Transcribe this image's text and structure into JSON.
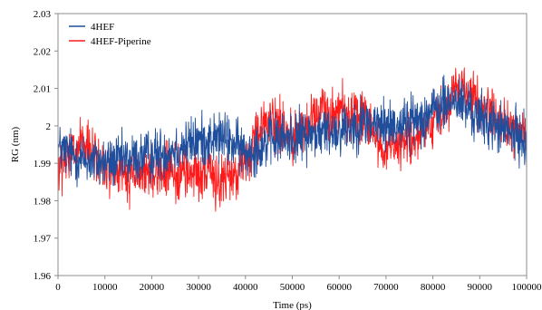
{
  "chart_data": {
    "type": "line",
    "xlabel": "Time (ps)",
    "ylabel": "RG (nm)",
    "xlim": [
      0,
      100000
    ],
    "ylim": [
      1.96,
      2.03
    ],
    "x_ticks": [
      "0",
      "10000",
      "20000",
      "30000",
      "40000",
      "50000",
      "60000",
      "70000",
      "80000",
      "90000",
      "100000"
    ],
    "y_ticks": [
      "1.96",
      "1.97",
      "1.98",
      "1.99",
      "2",
      "2.01",
      "2.02",
      "2.03"
    ],
    "grid": false,
    "legend_position": "top-left",
    "series": [
      {
        "name": "4HEF",
        "color": "#1f4e9c",
        "x": [
          0,
          5000,
          10000,
          15000,
          20000,
          25000,
          30000,
          35000,
          40000,
          45000,
          50000,
          55000,
          60000,
          65000,
          70000,
          75000,
          80000,
          85000,
          90000,
          95000,
          100000
        ],
        "y": [
          1.994,
          1.991,
          1.99,
          1.991,
          1.992,
          1.994,
          1.996,
          1.997,
          1.993,
          1.996,
          1.997,
          1.998,
          1.999,
          2.001,
          2.0,
          2.001,
          2.004,
          2.007,
          2.002,
          1.999,
          1.996
        ],
        "noise": 0.0065
      },
      {
        "name": "4HEF-Piperine",
        "color": "#ff1a1a",
        "x": [
          0,
          5000,
          10000,
          15000,
          20000,
          25000,
          30000,
          35000,
          40000,
          45000,
          50000,
          55000,
          60000,
          65000,
          70000,
          75000,
          80000,
          85000,
          90000,
          95000,
          100000
        ],
        "y": [
          1.988,
          1.995,
          1.989,
          1.986,
          1.988,
          1.987,
          1.988,
          1.985,
          1.99,
          2.003,
          1.997,
          2.002,
          2.005,
          2.002,
          1.994,
          1.996,
          1.999,
          2.012,
          2.006,
          2.001,
          1.997
        ],
        "noise": 0.0065
      }
    ]
  }
}
